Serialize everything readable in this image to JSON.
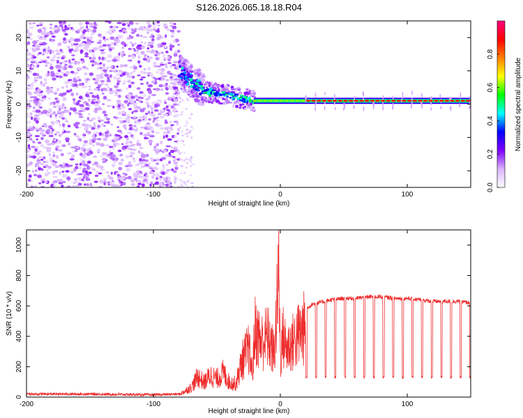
{
  "title": "S126.2026.065.18.18.R04",
  "chart_data": [
    {
      "type": "heatmap",
      "xlabel": "Height of straight line (km)",
      "ylabel": "Frequency (Hz)",
      "xlim": [
        -200,
        150
      ],
      "ylim": [
        -25,
        25
      ],
      "xticks": [
        -200,
        -100,
        0,
        100
      ],
      "yticks": [
        -20,
        -10,
        0,
        10,
        20
      ],
      "colorbar": {
        "label": "Normalized spectral amplitude",
        "range": [
          0,
          1
        ],
        "ticks": [
          0.0,
          0.2,
          0.4,
          0.6,
          0.8
        ],
        "colors": [
          "#ffffff",
          "#d9b3ff",
          "#7f00ff",
          "#0000ff",
          "#00ffff",
          "#00ff00",
          "#ffff00",
          "#ff8000",
          "#ff0000",
          "#ff0080"
        ]
      },
      "regions": [
        {
          "name": "noise",
          "x_range": [
            -200,
            -80
          ],
          "freq_range": [
            -25,
            25
          ],
          "amplitude": "low"
        },
        {
          "name": "transition",
          "x_range": [
            -80,
            -60
          ],
          "freq_center_range": [
            10,
            4
          ],
          "amplitude": "medium"
        },
        {
          "name": "convergence",
          "x_range": [
            -60,
            -20
          ],
          "freq_center_range": [
            4,
            1
          ],
          "amplitude": "medium-high"
        },
        {
          "name": "tone",
          "x_range": [
            -20,
            150
          ],
          "freq_center": 1,
          "amplitude": "high"
        }
      ]
    },
    {
      "type": "line",
      "xlabel": "Height of straight line (km)",
      "ylabel": "SNR (10 * v/v)",
      "xlim": [
        -200,
        150
      ],
      "ylim": [
        0,
        1100
      ],
      "xticks": [
        -200,
        -100,
        0,
        100
      ],
      "yticks": [
        0,
        200,
        400,
        600,
        800,
        1000
      ],
      "color": "#ee2c2c",
      "series": [
        {
          "name": "SNR",
          "x": [
            -200,
            -150,
            -100,
            -80,
            -70,
            -65,
            -60,
            -55,
            -50,
            -45,
            -40,
            -35,
            -30,
            -25,
            -22,
            -20,
            -15,
            -10,
            -5,
            -3,
            -1,
            0,
            2,
            5,
            10,
            15,
            20,
            25,
            30,
            35,
            40,
            50,
            60,
            70,
            80,
            90,
            100,
            110,
            120,
            130,
            140,
            150
          ],
          "y": [
            20,
            20,
            15,
            20,
            80,
            170,
            120,
            180,
            150,
            200,
            120,
            110,
            300,
            400,
            200,
            550,
            450,
            500,
            350,
            650,
            1080,
            300,
            500,
            400,
            450,
            520,
            580,
            610,
            620,
            630,
            640,
            650,
            650,
            660,
            660,
            650,
            650,
            640,
            630,
            630,
            630,
            620
          ],
          "dropouts": {
            "x_start": 20,
            "x_end": 150,
            "spacing_km": 7.6,
            "depth": 130
          }
        }
      ]
    }
  ]
}
